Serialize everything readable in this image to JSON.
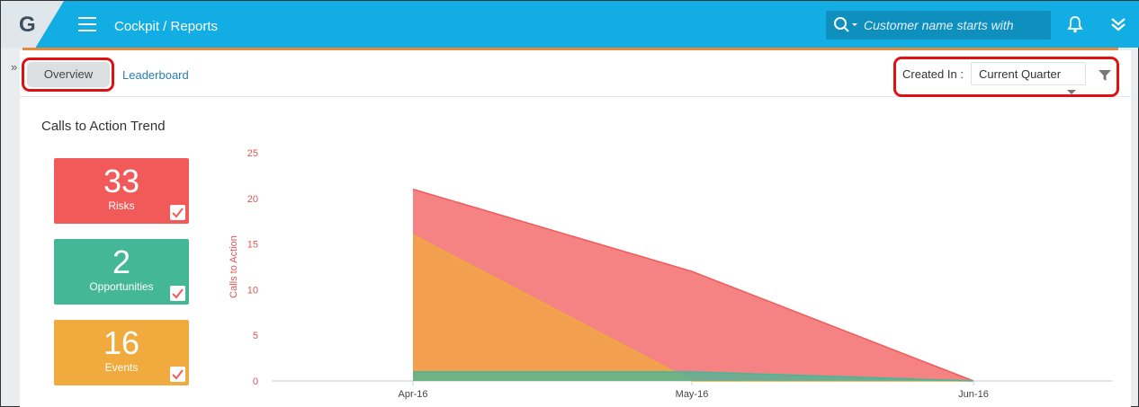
{
  "header": {
    "logo": "G",
    "breadcrumb": "Cockpit / Reports",
    "search_placeholder": "Customer name starts with",
    "icons": [
      "menu-icon",
      "search-icon",
      "bell-icon",
      "double-chevron-down-icon"
    ]
  },
  "tabs": {
    "overview": "Overview",
    "leaderboard": "Leaderboard"
  },
  "filter": {
    "label": "Created In :",
    "value": "Current Quarter"
  },
  "section_title": "Calls to Action Trend",
  "cards": [
    {
      "value": "33",
      "label": "Risks",
      "checked": true,
      "color": "#f25a5a"
    },
    {
      "value": "2",
      "label": "Opportunities",
      "checked": true,
      "color": "#44b896"
    },
    {
      "value": "16",
      "label": "Events",
      "checked": true,
      "color": "#f0aa3e"
    }
  ],
  "colors": {
    "header": "#12ade2",
    "highlight_ring": "#e01111",
    "axis_label": "#e05555"
  },
  "chart_data": {
    "type": "area",
    "x": [
      "Apr-16",
      "May-16",
      "Jun-16"
    ],
    "ylabel": "Calls to Action",
    "ylim": [
      0,
      25
    ],
    "yticks": [
      0,
      5,
      10,
      15,
      20,
      25
    ],
    "grid": false,
    "series": [
      {
        "name": "Risks",
        "values": [
          21,
          12,
          0
        ],
        "color": "#f25a5a"
      },
      {
        "name": "Opportunities",
        "values": [
          1,
          1,
          0
        ],
        "color": "#44b896"
      },
      {
        "name": "Events",
        "values": [
          16,
          0,
          0
        ],
        "color": "#f0aa3e"
      }
    ]
  }
}
